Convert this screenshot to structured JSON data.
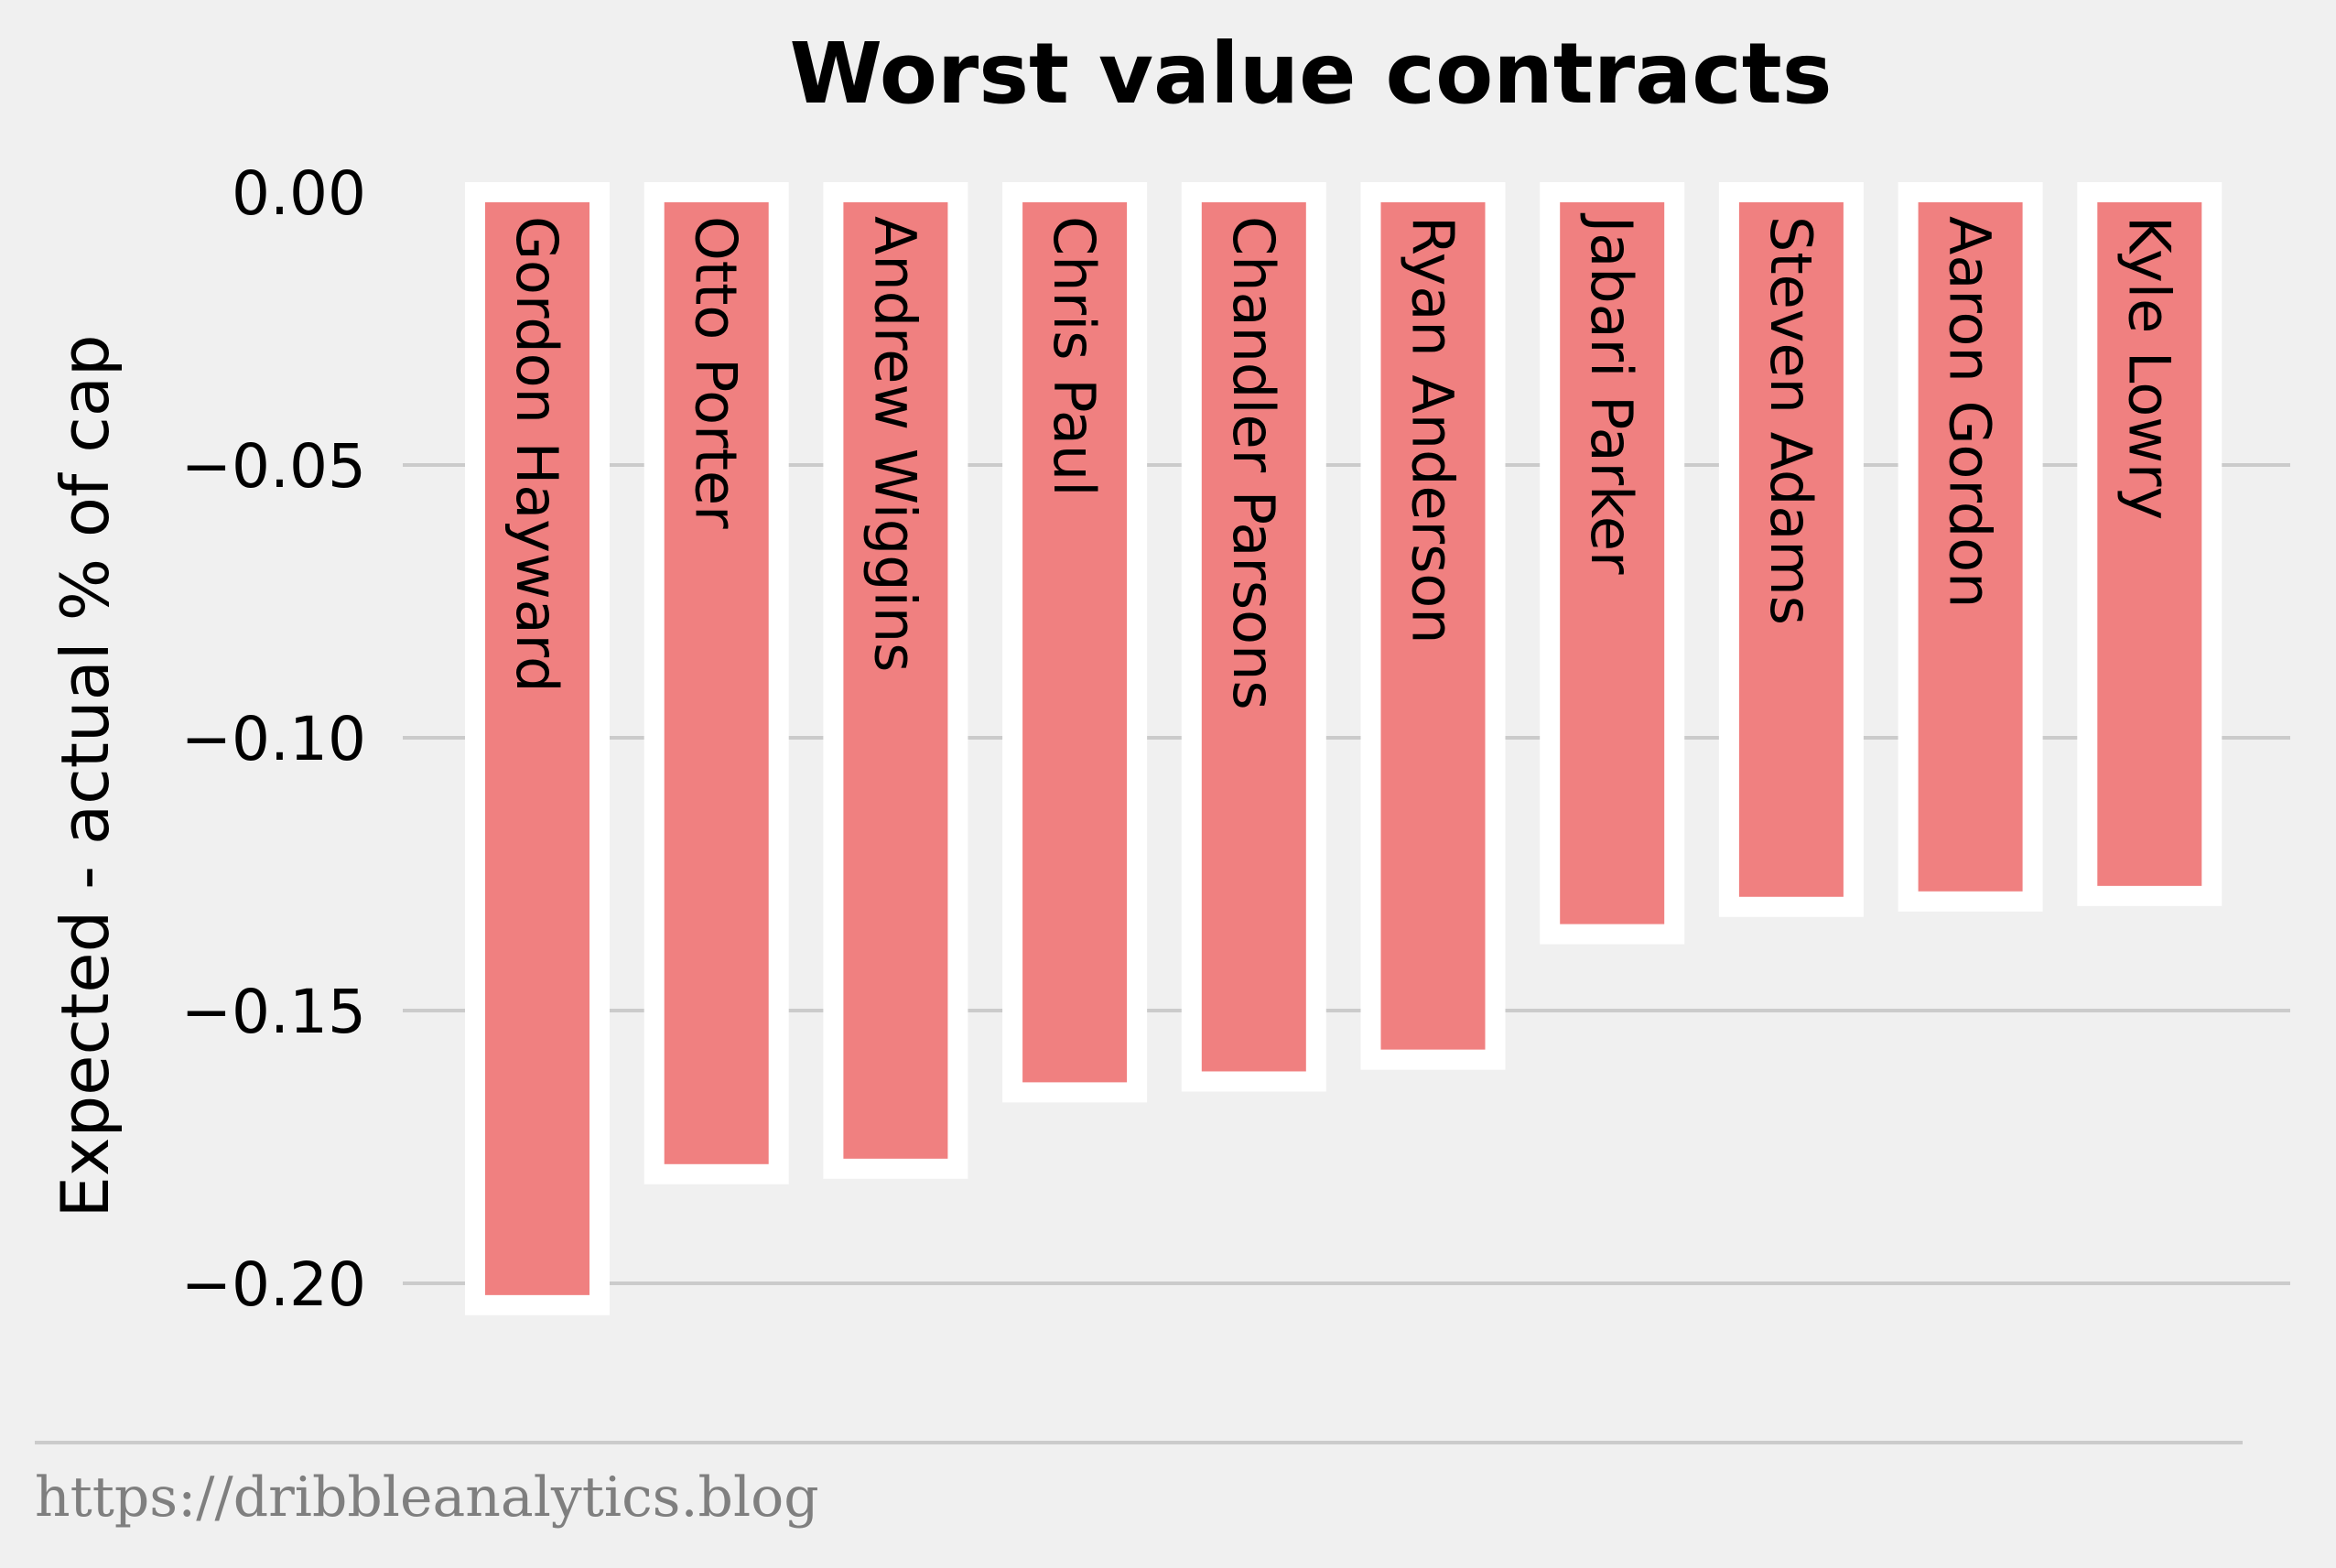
{
  "chart_data": {
    "type": "bar",
    "title": "Worst value contracts",
    "xlabel": "",
    "ylabel": "Expected - actual % of cap",
    "categories": [
      "Gordon Hayward",
      "Otto Porter",
      "Andrew Wiggins",
      "Chris Paul",
      "Chandler Parsons",
      "Ryan Anderson",
      "Jabari Parker",
      "Steven Adams",
      "Aaron Gordon",
      "Kyle Lowry"
    ],
    "values": [
      -0.204,
      -0.18,
      -0.179,
      -0.165,
      -0.163,
      -0.159,
      -0.136,
      -0.131,
      -0.13,
      -0.129
    ],
    "ylim": [
      -0.22,
      0.0
    ],
    "yticks": [
      "0.00",
      "−0.05",
      "−0.10",
      "−0.15",
      "−0.20"
    ],
    "ytick_values": [
      0.0,
      -0.05,
      -0.1,
      -0.15,
      -0.2
    ],
    "grid": "horizontal",
    "bar_color": "#f08080",
    "bar_edge_color": "#ffffff"
  },
  "footer": {
    "source_url": "https://dribbleanalytics.blog"
  }
}
